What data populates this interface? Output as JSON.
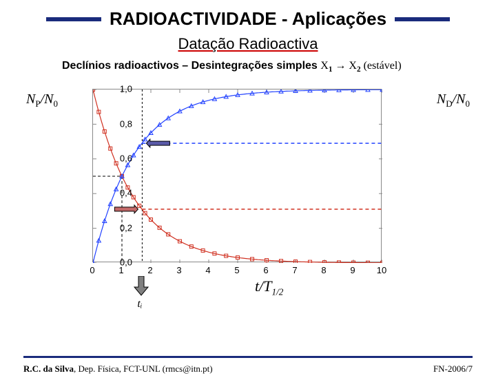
{
  "title": "RADIOACTIVIDADE - Aplicações",
  "subtitle": "Datação Radioactiva",
  "subheading_prefix": "Declínios radioactivos – ",
  "subheading_mid": "Desintegrações simples ",
  "subheading_x1": "X",
  "subheading_sub1": "1",
  "subheading_arrow": " → ",
  "subheading_x2": "X",
  "subheading_sub2": "2",
  "subheading_stable": " (estável)",
  "axis_left_main": "N",
  "axis_left_subP": "P",
  "axis_left_slash": "/N",
  "axis_left_sub0": "0",
  "axis_right_main": "N",
  "axis_right_subD": "D",
  "axis_right_slash": "/N",
  "axis_right_sub0": "0",
  "x_axis_label_t": "t",
  "x_axis_label_slash": "/T",
  "x_axis_label_half": "1/2",
  "ti_label": "tᵢ",
  "footer_left_bold": "R.C. da Silva",
  "footer_left_rest": ", Dep. Física, FCT-UNL (rmcs@itn.pt)",
  "footer_right": "FN-2006/7",
  "chart": {
    "type": "line-scatter",
    "xlim": [
      0,
      10
    ],
    "ylim": [
      0,
      1
    ],
    "xticks": [
      0,
      1,
      2,
      3,
      4,
      5,
      6,
      7,
      8,
      9,
      10
    ],
    "yticks": [
      0.0,
      0.2,
      0.4,
      0.6,
      0.8,
      1.0
    ],
    "ytick_labels": [
      "0,0",
      "0,2",
      "0,4",
      "0,6",
      "0,8",
      "1,0"
    ],
    "xtick_labels": [
      "0",
      "1",
      "2",
      "3",
      "4",
      "5",
      "6",
      "7",
      "8",
      "9",
      "10"
    ],
    "background_color": "#ffffff",
    "axis_color": "#888888",
    "series_decay": {
      "color": "#d03020",
      "marker": "square-open",
      "x": [
        0,
        0.2,
        0.4,
        0.6,
        0.8,
        1.0,
        1.2,
        1.4,
        1.6,
        1.8,
        2.0,
        2.3,
        2.6,
        3.0,
        3.4,
        3.8,
        4.2,
        4.6,
        5.0,
        5.5,
        6.0,
        6.5,
        7.0,
        7.5,
        8.0,
        8.5,
        9.0,
        9.5,
        10.0
      ]
    },
    "series_growth": {
      "color": "#2040ff",
      "marker": "triangle-open",
      "x": [
        0,
        0.2,
        0.4,
        0.6,
        0.8,
        1.0,
        1.2,
        1.4,
        1.6,
        1.8,
        2.0,
        2.3,
        2.6,
        3.0,
        3.4,
        3.8,
        4.2,
        4.6,
        5.0,
        5.5,
        6.0,
        6.5,
        7.0,
        7.5,
        8.0,
        8.5,
        9.0,
        9.5,
        10.0
      ]
    },
    "halflife_x": 1.0,
    "halflife_y": 0.5,
    "ti_value": 1.7,
    "guide_top_y": 0.69,
    "guide_bot_y": 0.31,
    "arrow_top_color": "#5a5aa8",
    "arrow_bot_color": "#c46a6a",
    "arrow_down_color": "#808080"
  }
}
